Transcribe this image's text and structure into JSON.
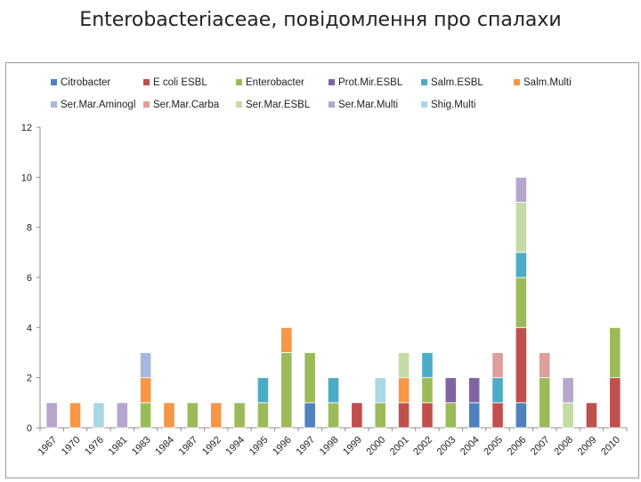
{
  "page": {
    "title": "Enterobacteriaceae, повідомлення про спалахи"
  },
  "chart_data": {
    "type": "bar",
    "stacked": true,
    "title": "",
    "xlabel": "",
    "ylabel": "",
    "ylim": [
      0,
      12
    ],
    "yticks": [
      0,
      2,
      4,
      6,
      8,
      10,
      12
    ],
    "grid": false,
    "legend_position": "top",
    "categories": [
      "1967",
      "1970",
      "1976",
      "1981",
      "1983",
      "1984",
      "1987",
      "1992",
      "1994",
      "1995",
      "1996",
      "1997",
      "1998",
      "1999",
      "2000",
      "2001",
      "2002",
      "2003",
      "2004",
      "2005",
      "2006",
      "2007",
      "2008",
      "2009",
      "2010"
    ],
    "series": [
      {
        "name": "Citrobacter",
        "color": "#4f81bd",
        "values": [
          0,
          0,
          0,
          0,
          0,
          0,
          0,
          0,
          0,
          0,
          0,
          1,
          0,
          0,
          0,
          0,
          0,
          0,
          1,
          0,
          1,
          0,
          0,
          0,
          0
        ]
      },
      {
        "name": "E coli ESBL",
        "color": "#c0504d",
        "values": [
          0,
          0,
          0,
          0,
          0,
          0,
          0,
          0,
          0,
          0,
          0,
          0,
          0,
          1,
          0,
          1,
          1,
          0,
          0,
          1,
          3,
          0,
          0,
          1,
          2
        ]
      },
      {
        "name": "Enterobacter",
        "color": "#9bbb59",
        "values": [
          0,
          0,
          0,
          0,
          1,
          0,
          1,
          0,
          1,
          1,
          3,
          2,
          1,
          0,
          1,
          0,
          1,
          1,
          0,
          0,
          2,
          2,
          0,
          0,
          2
        ]
      },
      {
        "name": "Prot.Mir.ESBL",
        "color": "#8064a2",
        "values": [
          0,
          0,
          0,
          0,
          0,
          0,
          0,
          0,
          0,
          0,
          0,
          0,
          0,
          0,
          0,
          0,
          0,
          1,
          1,
          0,
          0,
          0,
          0,
          0,
          0
        ]
      },
      {
        "name": "Salm.ESBL",
        "color": "#4bacc6",
        "values": [
          0,
          0,
          0,
          0,
          0,
          0,
          0,
          0,
          0,
          1,
          0,
          0,
          1,
          0,
          0,
          0,
          1,
          0,
          0,
          1,
          1,
          0,
          0,
          0,
          0
        ]
      },
      {
        "name": "Salm.Multi",
        "color": "#f79646",
        "values": [
          0,
          1,
          0,
          0,
          1,
          1,
          0,
          1,
          0,
          0,
          1,
          0,
          0,
          0,
          0,
          1,
          0,
          0,
          0,
          0,
          0,
          0,
          0,
          0,
          0
        ]
      },
      {
        "name": "Ser.Mar.Aminogl",
        "color": "#a5b8dd",
        "values": [
          0,
          0,
          0,
          0,
          1,
          0,
          0,
          0,
          0,
          0,
          0,
          0,
          0,
          0,
          0,
          0,
          0,
          0,
          0,
          0,
          0,
          0,
          0,
          0,
          0
        ]
      },
      {
        "name": "Ser.Mar.Carba",
        "color": "#dd9e9c",
        "values": [
          0,
          0,
          0,
          0,
          0,
          0,
          0,
          0,
          0,
          0,
          0,
          0,
          0,
          0,
          0,
          0,
          0,
          0,
          0,
          1,
          0,
          1,
          0,
          0,
          0
        ]
      },
      {
        "name": "Ser.Mar.ESBL",
        "color": "#c5dba5",
        "values": [
          0,
          0,
          0,
          0,
          0,
          0,
          0,
          0,
          0,
          0,
          0,
          0,
          0,
          0,
          0,
          1,
          0,
          0,
          0,
          0,
          2,
          0,
          1,
          0,
          0
        ]
      },
      {
        "name": "Ser.Mar.Multi",
        "color": "#b4a6cc",
        "values": [
          1,
          0,
          0,
          1,
          0,
          0,
          0,
          0,
          0,
          0,
          0,
          0,
          0,
          0,
          0,
          0,
          0,
          0,
          0,
          0,
          1,
          0,
          1,
          0,
          0
        ]
      },
      {
        "name": "Shig.Multi",
        "color": "#a9d7e3",
        "values": [
          0,
          0,
          1,
          0,
          0,
          0,
          0,
          0,
          0,
          0,
          0,
          0,
          0,
          0,
          1,
          0,
          0,
          0,
          0,
          0,
          0,
          0,
          0,
          0,
          0
        ]
      }
    ]
  }
}
